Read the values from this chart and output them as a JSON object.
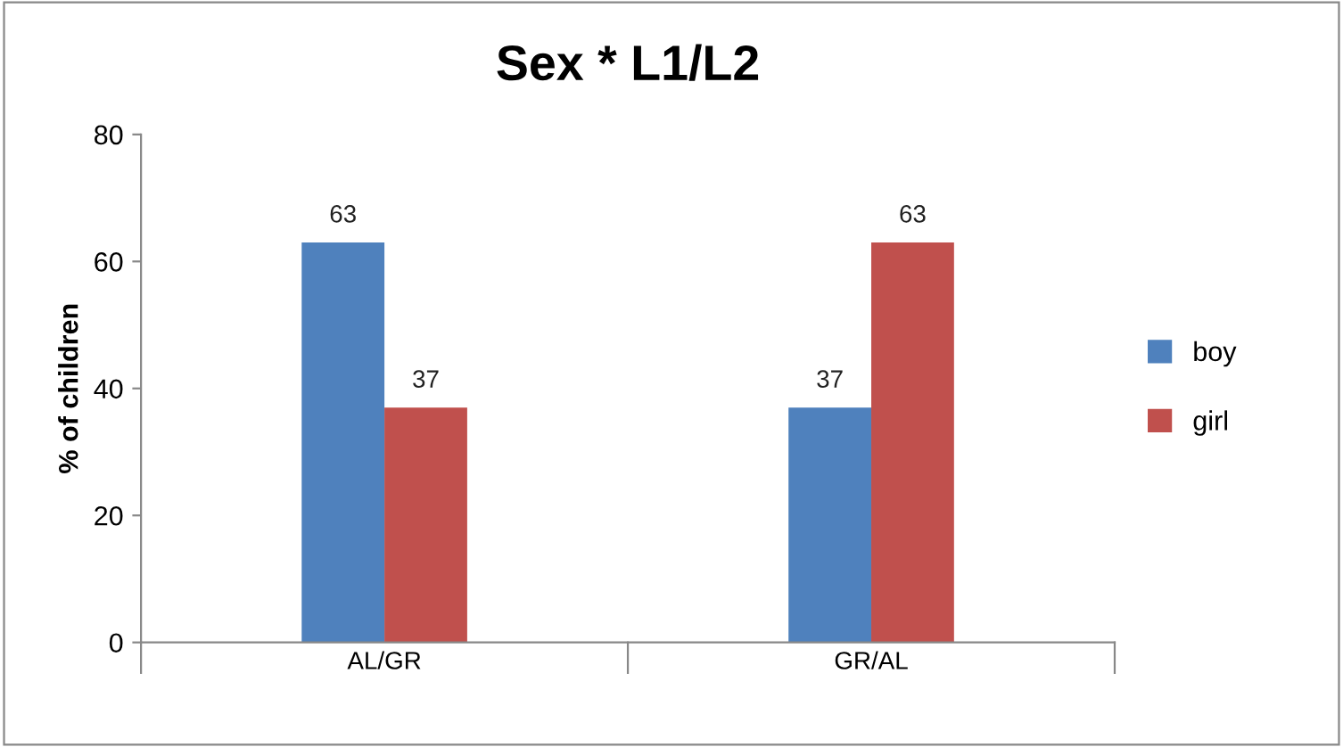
{
  "chart_data": {
    "type": "bar",
    "title": "Sex * L1/L2",
    "ylabel": "% of children",
    "categories": [
      "AL/GR",
      "GR/AL"
    ],
    "series": [
      {
        "name": "boy",
        "color": "#4f81bd",
        "values": [
          63,
          37
        ]
      },
      {
        "name": "girl",
        "color": "#c0504d",
        "values": [
          37,
          63
        ]
      }
    ],
    "ylim": [
      0,
      80
    ],
    "yticks": [
      0,
      20,
      40,
      60,
      80
    ],
    "grid": false,
    "legend": "right",
    "data_labels": true
  }
}
